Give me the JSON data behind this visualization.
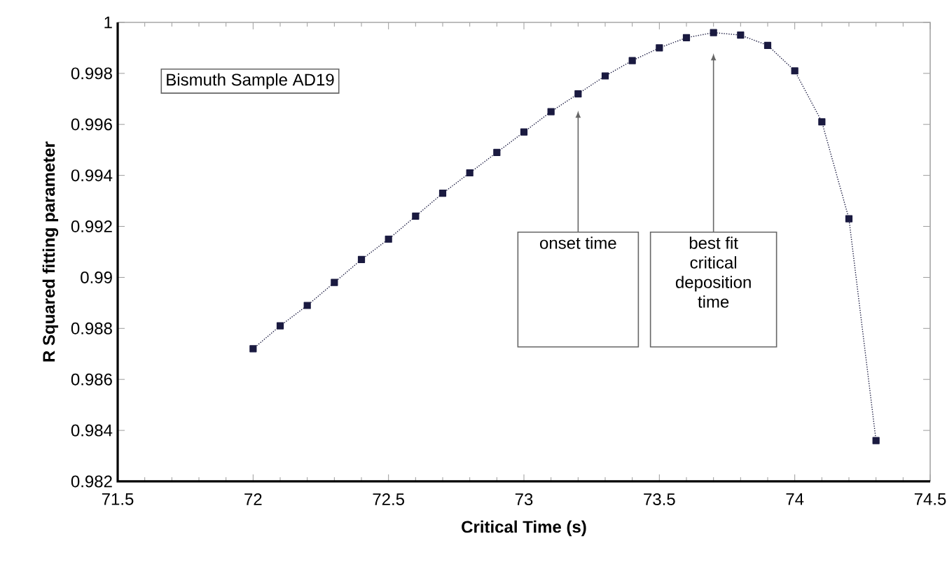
{
  "chart_data": {
    "type": "line",
    "xlabel": "Critical Time (s)",
    "ylabel": "R Squared fitting parameter",
    "x": [
      72.0,
      72.1,
      72.2,
      72.3,
      72.4,
      72.5,
      72.6,
      72.7,
      72.8,
      72.9,
      73.0,
      73.1,
      73.2,
      73.3,
      73.4,
      73.5,
      73.6,
      73.7,
      73.8,
      73.9,
      74.0,
      74.1,
      74.2,
      74.3
    ],
    "series": [
      {
        "color": "#1a1a40",
        "values": [
          0.9872,
          0.9881,
          0.9889,
          0.9898,
          0.9907,
          0.9915,
          0.9924,
          0.9933,
          0.9941,
          0.9949,
          0.9957,
          0.9965,
          0.9972,
          0.9979,
          0.9985,
          0.999,
          0.9994,
          0.9996,
          0.9995,
          0.9991,
          0.9981,
          0.9961,
          0.9923,
          0.9836
        ]
      }
    ],
    "xlim": [
      71.5,
      74.5
    ],
    "xticks": [
      71.5,
      72,
      72.5,
      73,
      73.5,
      74,
      74.5
    ],
    "ylim": [
      0.982,
      1
    ],
    "yticks": [
      0.982,
      0.984,
      0.986,
      0.988,
      0.99,
      0.992,
      0.994,
      0.996,
      0.998,
      1
    ],
    "marker": "square",
    "line_style": "dotted",
    "grid": false,
    "annotations": [
      "Bismuth Sample AD19",
      "onset time",
      "best fit critical deposition time"
    ]
  }
}
